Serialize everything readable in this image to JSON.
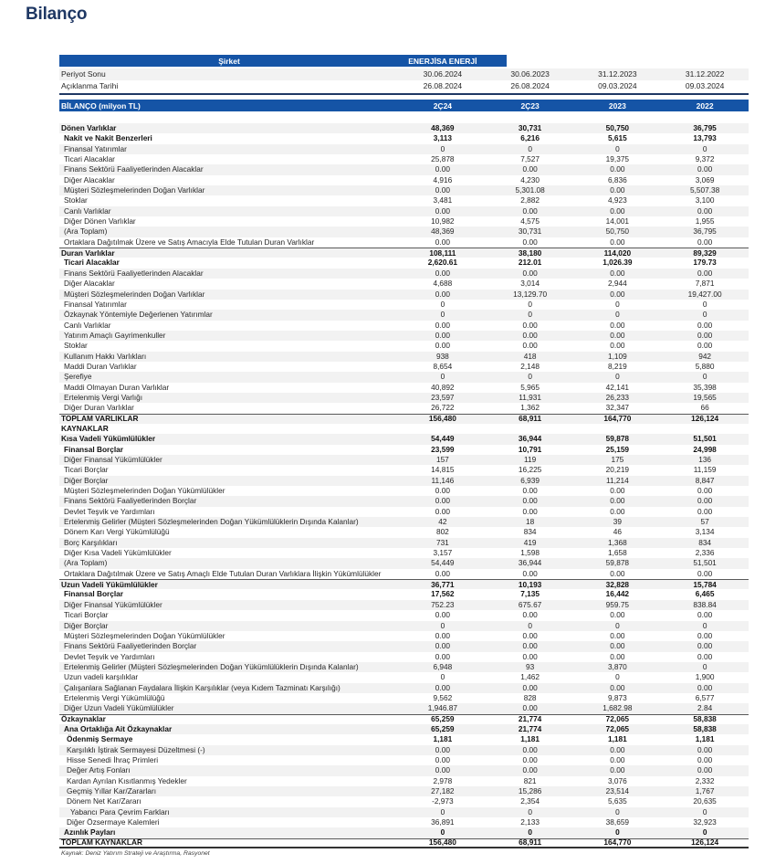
{
  "page": {
    "title": "Bilanço",
    "footer_source": "Kaynak: Deniz Yatırım Strateji ve Araştırma, Rasyonet"
  },
  "colors": {
    "accent_blue": "#1554A6",
    "title_navy": "#1F3864",
    "stripe_gray": "#F2F2F2"
  },
  "company_header": {
    "label": "Şirket",
    "company": "ENERJİSA ENERJİ"
  },
  "date_rows": [
    {
      "label": "Periyot Sonu",
      "values": [
        "30.06.2024",
        "30.06.2023",
        "31.12.2023",
        "31.12.2022"
      ]
    },
    {
      "label": "Açıklanma Tarihi",
      "values": [
        "26.08.2024",
        "26.08.2024",
        "09.03.2024",
        "09.03.2024"
      ]
    }
  ],
  "table_header": {
    "label": "BİLANÇO (milyon TL)",
    "columns": [
      "2Ç24",
      "2Ç23",
      "2023",
      "2022"
    ]
  },
  "rows": [
    {
      "label": "Dönen Varlıklar",
      "values": [
        "48,369",
        "30,731",
        "50,750",
        "36,795"
      ],
      "bold": true,
      "indent": 0,
      "border_top": false
    },
    {
      "label": "Nakit ve Nakit Benzerleri",
      "values": [
        "3,113",
        "6,216",
        "5,615",
        "13,793"
      ],
      "bold": true,
      "indent": 1,
      "border_top": false
    },
    {
      "label": "Finansal Yatırımlar",
      "values": [
        "0",
        "0",
        "0",
        "0"
      ],
      "bold": false,
      "indent": 1,
      "border_top": false
    },
    {
      "label": "Ticari Alacaklar",
      "values": [
        "25,878",
        "7,527",
        "19,375",
        "9,372"
      ],
      "bold": false,
      "indent": 1,
      "border_top": false
    },
    {
      "label": "Finans Sektörü Faaliyetlerinden Alacaklar",
      "values": [
        "0.00",
        "0.00",
        "0.00",
        "0.00"
      ],
      "bold": false,
      "indent": 1,
      "border_top": false
    },
    {
      "label": "Diğer Alacaklar",
      "values": [
        "4,916",
        "4,230",
        "6,836",
        "3,069"
      ],
      "bold": false,
      "indent": 1,
      "border_top": false
    },
    {
      "label": "Müşteri Sözleşmelerinden Doğan Varlıklar",
      "values": [
        "0.00",
        "5,301.08",
        "0.00",
        "5,507.38"
      ],
      "bold": false,
      "indent": 1,
      "border_top": false
    },
    {
      "label": "Stoklar",
      "values": [
        "3,481",
        "2,882",
        "4,923",
        "3,100"
      ],
      "bold": false,
      "indent": 1,
      "border_top": false
    },
    {
      "label": "Canlı Varlıklar",
      "values": [
        "0.00",
        "0.00",
        "0.00",
        "0.00"
      ],
      "bold": false,
      "indent": 1,
      "border_top": false
    },
    {
      "label": "Diğer Dönen Varlıklar",
      "values": [
        "10,982",
        "4,575",
        "14,001",
        "1,955"
      ],
      "bold": false,
      "indent": 1,
      "border_top": false
    },
    {
      "label": "(Ara Toplam)",
      "values": [
        "48,369",
        "30,731",
        "50,750",
        "36,795"
      ],
      "bold": false,
      "indent": 1,
      "border_top": false
    },
    {
      "label": "Ortaklara Dağıtılmak Üzere ve Satış Amacıyla Elde Tutulan Duran Varlıklar",
      "values": [
        "0.00",
        "0.00",
        "0.00",
        "0.00"
      ],
      "bold": false,
      "indent": 1,
      "border_top": false
    },
    {
      "label": "Duran Varlıklar",
      "values": [
        "108,111",
        "38,180",
        "114,020",
        "89,329"
      ],
      "bold": true,
      "indent": 0,
      "border_top": true
    },
    {
      "label": "Ticari Alacaklar",
      "values": [
        "2,620.61",
        "212.01",
        "1,026.39",
        "179.73"
      ],
      "bold": true,
      "indent": 1,
      "border_top": false
    },
    {
      "label": "Finans Sektörü Faaliyetlerinden Alacaklar",
      "values": [
        "0.00",
        "0.00",
        "0.00",
        "0.00"
      ],
      "bold": false,
      "indent": 1,
      "border_top": false
    },
    {
      "label": "Diğer Alacaklar",
      "values": [
        "4,688",
        "3,014",
        "2,944",
        "7,871"
      ],
      "bold": false,
      "indent": 1,
      "border_top": false
    },
    {
      "label": "Müşteri Sözleşmelerinden Doğan Varlıklar",
      "values": [
        "0.00",
        "13,129.70",
        "0.00",
        "19,427.00"
      ],
      "bold": false,
      "indent": 1,
      "border_top": false
    },
    {
      "label": "Finansal Yatırımlar",
      "values": [
        "0",
        "0",
        "0",
        "0"
      ],
      "bold": false,
      "indent": 1,
      "border_top": false
    },
    {
      "label": "Özkaynak Yöntemiyle Değerlenen Yatırımlar",
      "values": [
        "0",
        "0",
        "0",
        "0"
      ],
      "bold": false,
      "indent": 1,
      "border_top": false
    },
    {
      "label": "Canlı Varlıklar",
      "values": [
        "0.00",
        "0.00",
        "0.00",
        "0.00"
      ],
      "bold": false,
      "indent": 1,
      "border_top": false
    },
    {
      "label": "Yatırım Amaçlı Gayrimenkuller",
      "values": [
        "0.00",
        "0.00",
        "0.00",
        "0.00"
      ],
      "bold": false,
      "indent": 1,
      "border_top": false
    },
    {
      "label": "Stoklar",
      "values": [
        "0.00",
        "0.00",
        "0.00",
        "0.00"
      ],
      "bold": false,
      "indent": 1,
      "border_top": false
    },
    {
      "label": "Kullanım Hakkı Varlıkları",
      "values": [
        "938",
        "418",
        "1,109",
        "942"
      ],
      "bold": false,
      "indent": 1,
      "border_top": false
    },
    {
      "label": "Maddi Duran Varlıklar",
      "values": [
        "8,654",
        "2,148",
        "8,219",
        "5,880"
      ],
      "bold": false,
      "indent": 1,
      "border_top": false
    },
    {
      "label": "Şerefiye",
      "values": [
        "0",
        "0",
        "0",
        "0"
      ],
      "bold": false,
      "indent": 1,
      "border_top": false
    },
    {
      "label": "Maddi Olmayan Duran Varlıklar",
      "values": [
        "40,892",
        "5,965",
        "42,141",
        "35,398"
      ],
      "bold": false,
      "indent": 1,
      "border_top": false
    },
    {
      "label": "Ertelenmiş Vergi Varlığı",
      "values": [
        "23,597",
        "11,931",
        "26,233",
        "19,565"
      ],
      "bold": false,
      "indent": 1,
      "border_top": false
    },
    {
      "label": "Diğer Duran Varlıklar",
      "values": [
        "26,722",
        "1,362",
        "32,347",
        "66"
      ],
      "bold": false,
      "indent": 1,
      "border_top": false
    },
    {
      "label": "TOPLAM VARLIKLAR",
      "values": [
        "156,480",
        "68,911",
        "164,770",
        "126,124"
      ],
      "bold": true,
      "indent": 0,
      "border_top": true
    },
    {
      "label": "KAYNAKLAR",
      "values": [
        "",
        "",
        "",
        ""
      ],
      "bold": true,
      "indent": 0,
      "border_top": false
    },
    {
      "label": "Kısa Vadeli Yükümlülükler",
      "values": [
        "54,449",
        "36,944",
        "59,878",
        "51,501"
      ],
      "bold": true,
      "indent": 0,
      "border_top": false
    },
    {
      "label": "Finansal Borçlar",
      "values": [
        "23,599",
        "10,791",
        "25,159",
        "24,998"
      ],
      "bold": true,
      "indent": 1,
      "border_top": false
    },
    {
      "label": "Diğer Finansal Yükümlülükler",
      "values": [
        "157",
        "119",
        "175",
        "136"
      ],
      "bold": false,
      "indent": 1,
      "border_top": false
    },
    {
      "label": "Ticari Borçlar",
      "values": [
        "14,815",
        "16,225",
        "20,219",
        "11,159"
      ],
      "bold": false,
      "indent": 1,
      "border_top": false
    },
    {
      "label": "Diğer Borçlar",
      "values": [
        "11,146",
        "6,939",
        "11,214",
        "8,847"
      ],
      "bold": false,
      "indent": 1,
      "border_top": false
    },
    {
      "label": "Müşteri Sözleşmelerinden Doğan Yükümlülükler",
      "values": [
        "0.00",
        "0.00",
        "0.00",
        "0.00"
      ],
      "bold": false,
      "indent": 1,
      "border_top": false
    },
    {
      "label": "Finans Sektörü Faaliyetlerinden Borçlar",
      "values": [
        "0.00",
        "0.00",
        "0.00",
        "0.00"
      ],
      "bold": false,
      "indent": 1,
      "border_top": false
    },
    {
      "label": "Devlet Teşvik ve Yardımları",
      "values": [
        "0.00",
        "0.00",
        "0.00",
        "0.00"
      ],
      "bold": false,
      "indent": 1,
      "border_top": false
    },
    {
      "label": "Ertelenmiş Gelirler (Müşteri Sözleşmelerinden Doğan Yükümlülüklerin Dışında Kalanlar)",
      "values": [
        "42",
        "18",
        "39",
        "57"
      ],
      "bold": false,
      "indent": 1,
      "border_top": false
    },
    {
      "label": "Dönem Karı Vergi Yükümlülüğü",
      "values": [
        "802",
        "834",
        "46",
        "3,134"
      ],
      "bold": false,
      "indent": 1,
      "border_top": false
    },
    {
      "label": "Borç Karşılıkları",
      "values": [
        "731",
        "419",
        "1,368",
        "834"
      ],
      "bold": false,
      "indent": 1,
      "border_top": false
    },
    {
      "label": "Diğer Kısa Vadeli Yükümlülükler",
      "values": [
        "3,157",
        "1,598",
        "1,658",
        "2,336"
      ],
      "bold": false,
      "indent": 1,
      "border_top": false
    },
    {
      "label": "(Ara Toplam)",
      "values": [
        "54,449",
        "36,944",
        "59,878",
        "51,501"
      ],
      "bold": false,
      "indent": 1,
      "border_top": false
    },
    {
      "label": "Ortaklara Dağıtılmak Üzere ve Satış Amaçlı Elde Tutulan Duran Varlıklara İlişkin Yükümlülükler",
      "values": [
        "0.00",
        "0.00",
        "0.00",
        "0.00"
      ],
      "bold": false,
      "indent": 1,
      "border_top": false
    },
    {
      "label": "Uzun Vadeli Yükümlülükler",
      "values": [
        "36,771",
        "10,193",
        "32,828",
        "15,784"
      ],
      "bold": true,
      "indent": 0,
      "border_top": true
    },
    {
      "label": "Finansal Borçlar",
      "values": [
        "17,562",
        "7,135",
        "16,442",
        "6,465"
      ],
      "bold": true,
      "indent": 1,
      "border_top": false
    },
    {
      "label": "Diğer Finansal Yükümlülükler",
      "values": [
        "752.23",
        "675.67",
        "959.75",
        "838.84"
      ],
      "bold": false,
      "indent": 1,
      "border_top": false
    },
    {
      "label": "Ticari Borçlar",
      "values": [
        "0.00",
        "0.00",
        "0.00",
        "0.00"
      ],
      "bold": false,
      "indent": 1,
      "border_top": false
    },
    {
      "label": "Diğer Borçlar",
      "values": [
        "0",
        "0",
        "0",
        "0"
      ],
      "bold": false,
      "indent": 1,
      "border_top": false
    },
    {
      "label": "Müşteri Sözleşmelerinden Doğan Yükümlülükler",
      "values": [
        "0.00",
        "0.00",
        "0.00",
        "0.00"
      ],
      "bold": false,
      "indent": 1,
      "border_top": false
    },
    {
      "label": "Finans Sektörü Faaliyetlerinden Borçlar",
      "values": [
        "0.00",
        "0.00",
        "0.00",
        "0.00"
      ],
      "bold": false,
      "indent": 1,
      "border_top": false
    },
    {
      "label": "Devlet Teşvik ve Yardımları",
      "values": [
        "0.00",
        "0.00",
        "0.00",
        "0.00"
      ],
      "bold": false,
      "indent": 1,
      "border_top": false
    },
    {
      "label": "Ertelenmiş Gelirler (Müşteri Sözleşmelerinden Doğan Yükümlülüklerin Dışında Kalanlar)",
      "values": [
        "6,948",
        "93",
        "3,870",
        "0"
      ],
      "bold": false,
      "indent": 1,
      "border_top": false
    },
    {
      "label": "Uzun vadeli karşılıklar",
      "values": [
        "0",
        "1,462",
        "0",
        "1,900"
      ],
      "bold": false,
      "indent": 1,
      "border_top": false
    },
    {
      "label": "Çalışanlara Sağlanan Faydalara İlişkin Karşılıklar (veya Kıdem Tazminatı Karşılığı)",
      "values": [
        "0.00",
        "0.00",
        "0.00",
        "0.00"
      ],
      "bold": false,
      "indent": 1,
      "border_top": false
    },
    {
      "label": "Ertelenmiş Vergi Yükümlülüğü",
      "values": [
        "9,562",
        "828",
        "9,873",
        "6,577"
      ],
      "bold": false,
      "indent": 1,
      "border_top": false
    },
    {
      "label": "Diğer Uzun Vadeli Yükümlülükler",
      "values": [
        "1,946.87",
        "0.00",
        "1,682.98",
        "2.84"
      ],
      "bold": false,
      "indent": 1,
      "border_top": false
    },
    {
      "label": "Özkaynaklar",
      "values": [
        "65,259",
        "21,774",
        "72,065",
        "58,838"
      ],
      "bold": true,
      "indent": 0,
      "border_top": true
    },
    {
      "label": "Ana Ortaklığa Ait Özkaynaklar",
      "values": [
        "65,259",
        "21,774",
        "72,065",
        "58,838"
      ],
      "bold": true,
      "indent": 1,
      "border_top": false
    },
    {
      "label": "Ödenmiş Sermaye",
      "values": [
        "1,181",
        "1,181",
        "1,181",
        "1,181"
      ],
      "bold": true,
      "indent": 2,
      "border_top": false
    },
    {
      "label": "Karşılıklı İştirak Sermayesi Düzeltmesi (-)",
      "values": [
        "0.00",
        "0.00",
        "0.00",
        "0.00"
      ],
      "bold": false,
      "indent": 2,
      "border_top": false
    },
    {
      "label": "Hisse Senedi İhraç Primleri",
      "values": [
        "0.00",
        "0.00",
        "0.00",
        "0.00"
      ],
      "bold": false,
      "indent": 2,
      "border_top": false
    },
    {
      "label": "Değer Artış Fonları",
      "values": [
        "0.00",
        "0.00",
        "0.00",
        "0.00"
      ],
      "bold": false,
      "indent": 2,
      "border_top": false
    },
    {
      "label": "Kardan Ayrılan Kısıtlanmış Yedekler",
      "values": [
        "2,978",
        "821",
        "3,076",
        "2,332"
      ],
      "bold": false,
      "indent": 2,
      "border_top": false
    },
    {
      "label": "Geçmiş Yıllar Kar/Zararları",
      "values": [
        "27,182",
        "15,286",
        "23,514",
        "1,767"
      ],
      "bold": false,
      "indent": 2,
      "border_top": false
    },
    {
      "label": "Dönem Net Kar/Zararı",
      "values": [
        "-2,973",
        "2,354",
        "5,635",
        "20,635"
      ],
      "bold": false,
      "indent": 2,
      "border_top": false
    },
    {
      "label": "Yabancı Para Çevrim Farkları",
      "values": [
        "0",
        "0",
        "0",
        "0"
      ],
      "bold": false,
      "indent": 3,
      "border_top": false
    },
    {
      "label": "Diğer Özsermaye Kalemleri",
      "values": [
        "36,891",
        "2,133",
        "38,659",
        "32,923"
      ],
      "bold": false,
      "indent": 2,
      "border_top": false
    },
    {
      "label": "Azınlık Payları",
      "values": [
        "0",
        "0",
        "0",
        "0"
      ],
      "bold": true,
      "indent": 1,
      "border_top": false
    },
    {
      "label": "TOPLAM KAYNAKLAR",
      "values": [
        "156,480",
        "68,911",
        "164,770",
        "126,124"
      ],
      "bold": true,
      "indent": 0,
      "border_top": true,
      "border_bottom": true
    }
  ]
}
